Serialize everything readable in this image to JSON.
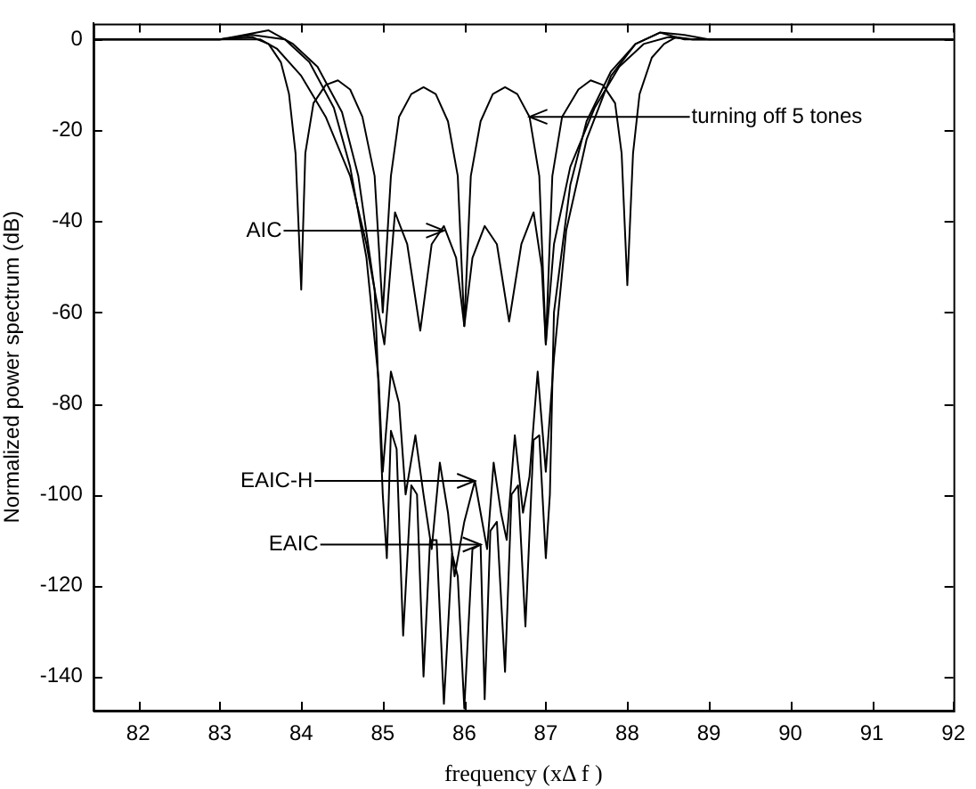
{
  "chart_data": {
    "type": "line",
    "xlabel": "frequency (xΔ f )",
    "ylabel": "Normalized power spectrum (dB)",
    "xlim": [
      81.45,
      92
    ],
    "ylim": [
      -147.5,
      3.5
    ],
    "xticks": [
      82,
      83,
      84,
      85,
      86,
      87,
      88,
      89,
      90,
      91,
      92
    ],
    "yticks": [
      0,
      -20,
      -40,
      -60,
      -80,
      -100,
      -120,
      -140
    ],
    "grid": false,
    "legend": false,
    "marker": "none",
    "line_style": "solid",
    "series": [
      {
        "color": "#000000",
        "x": [
          81.45,
          82,
          83,
          83.4,
          83.6,
          83.75,
          83.85,
          83.93,
          84.0,
          84.05,
          84.15,
          84.3,
          84.45,
          84.6,
          84.75,
          84.9,
          85.0,
          85.1,
          85.2,
          85.35,
          85.5,
          85.65,
          85.8,
          85.92,
          86.0,
          86.08,
          86.2,
          86.35,
          86.5,
          86.65,
          86.8,
          86.92,
          87.0,
          87.08,
          87.2,
          87.4,
          87.55,
          87.7,
          87.85,
          87.93,
          88.0,
          88.07,
          88.15,
          88.3,
          88.45,
          88.6,
          88.8,
          90,
          92
        ],
        "values": [
          0,
          0,
          0,
          0.5,
          -1,
          -5,
          -12,
          -25,
          -55,
          -25,
          -14,
          -10,
          -9,
          -11,
          -17,
          -30,
          -60,
          -30,
          -17,
          -12,
          -10.5,
          -12,
          -18,
          -30,
          -63,
          -30,
          -18,
          -12,
          -10.5,
          -12,
          -17,
          -30,
          -67,
          -30,
          -17,
          -11,
          -9,
          -10,
          -14,
          -25,
          -54,
          -25,
          -12,
          -4,
          -1,
          0.5,
          0,
          0,
          0
        ]
      },
      {
        "color": "#000000",
        "x": [
          81.45,
          83,
          83.5,
          83.7,
          84.0,
          84.3,
          84.6,
          84.8,
          84.95,
          85.02,
          85.15,
          85.3,
          85.46,
          85.6,
          85.75,
          85.9,
          86.0,
          86.1,
          86.25,
          86.4,
          86.55,
          86.7,
          86.85,
          86.95,
          87.0,
          87.1,
          87.3,
          87.6,
          87.9,
          88.2,
          88.5,
          88.8,
          92
        ],
        "values": [
          0,
          0,
          0,
          -2,
          -8,
          -17,
          -30,
          -45,
          -60,
          -67,
          -38,
          -45,
          -64,
          -45,
          -41,
          -48,
          -63,
          -48,
          -41,
          -45,
          -62,
          -45,
          -38,
          -50,
          -67,
          -45,
          -28,
          -15,
          -6,
          -1,
          0.5,
          0,
          0
        ]
      },
      {
        "color": "#000000",
        "x": [
          81.45,
          83,
          83.4,
          83.8,
          84.1,
          84.4,
          84.6,
          84.8,
          84.95,
          85.0,
          85.1,
          85.2,
          85.28,
          85.4,
          85.5,
          85.6,
          85.7,
          85.8,
          85.88,
          86.0,
          86.13,
          86.2,
          86.28,
          86.36,
          86.45,
          86.52,
          86.62,
          86.72,
          86.8,
          86.9,
          87.0,
          87.1,
          87.25,
          87.5,
          87.8,
          88.1,
          88.4,
          88.7,
          92
        ],
        "values": [
          0,
          0,
          1,
          0,
          -5,
          -15,
          -28,
          -48,
          -75,
          -95,
          -73,
          -80,
          -100,
          -87,
          -100,
          -112,
          -93,
          -104,
          -118,
          -106,
          -97,
          -104,
          -112,
          -93,
          -104,
          -110,
          -87,
          -104,
          -96,
          -73,
          -95,
          -70,
          -42,
          -22,
          -8,
          -1,
          1.5,
          0,
          0
        ]
      },
      {
        "color": "#000000",
        "x": [
          81.45,
          83,
          83.3,
          83.6,
          83.9,
          84.2,
          84.5,
          84.7,
          84.9,
          85.0,
          85.05,
          85.1,
          85.17,
          85.25,
          85.35,
          85.42,
          85.5,
          85.58,
          85.66,
          85.75,
          85.85,
          85.92,
          86.0,
          86.1,
          86.2,
          86.25,
          86.32,
          86.4,
          86.5,
          86.58,
          86.66,
          86.75,
          86.85,
          86.92,
          87.0,
          87.05,
          87.1,
          87.3,
          87.5,
          87.8,
          88.1,
          88.4,
          88.7,
          89,
          92
        ],
        "values": [
          0,
          0,
          1,
          2,
          -1,
          -6,
          -16,
          -30,
          -55,
          -100,
          -114,
          -86,
          -90,
          -131,
          -98,
          -100,
          -140,
          -110,
          -110,
          -146,
          -113,
          -118,
          -147,
          -112,
          -111,
          -145,
          -108,
          -106,
          -139,
          -100,
          -98,
          -129,
          -88,
          -87,
          -114,
          -100,
          -60,
          -32,
          -18,
          -7,
          -1,
          1.5,
          1,
          0,
          0
        ]
      }
    ],
    "annotations": [
      {
        "text": "turning off 5 tones",
        "x": 86.8,
        "y": -17
      },
      {
        "text": "AIC",
        "x": 85.75,
        "y": -42
      },
      {
        "text": "EAIC-H",
        "x": 86.13,
        "y": -97
      },
      {
        "text": "EAIC",
        "x": 86.2,
        "y": -111
      }
    ]
  }
}
